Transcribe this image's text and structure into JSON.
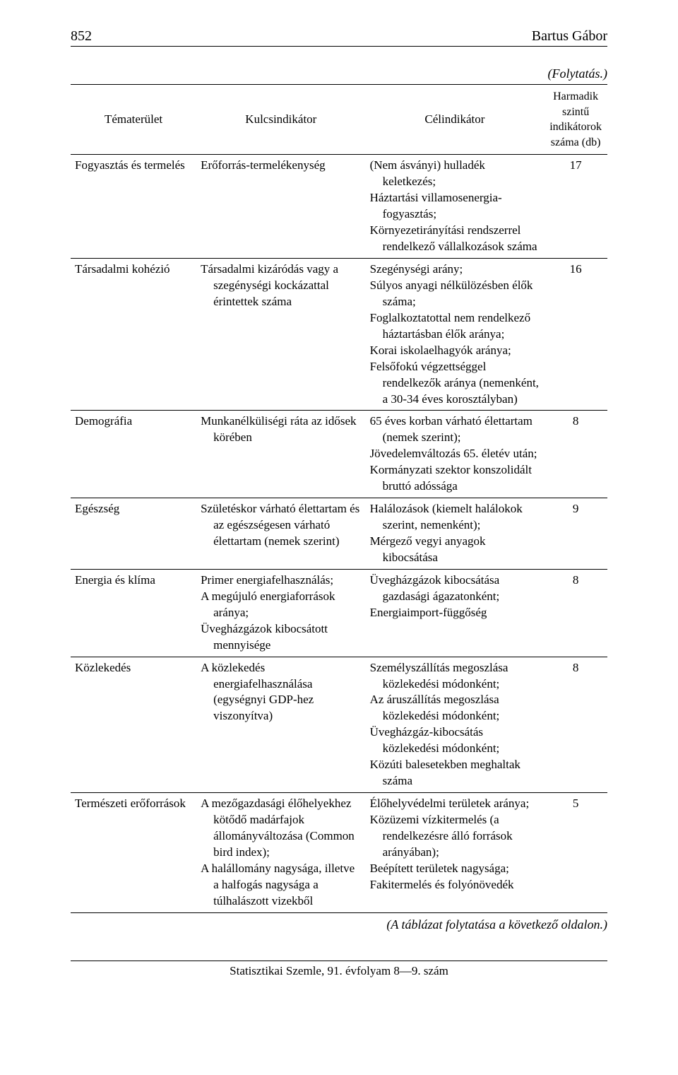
{
  "header": {
    "page_number": "852",
    "author": "Bartus Gábor"
  },
  "continuation": "(Folytatás.)",
  "table": {
    "headers": {
      "col1": "Tématerület",
      "col2": "Kulcsindikátor",
      "col3": "Célindikátor",
      "col4": "Harmadik szintű indikátorok száma (db)"
    },
    "rows": [
      {
        "topic": "Fogyasztás és termelés",
        "key": "Erőforrás-termelékenység",
        "targets": [
          "(Nem ásványi) hulladék keletkezés;",
          "Háztartási villamosenergia-fogyasztás;",
          "Környezetirányítási rendszerrel rendelkező vállalkozások száma"
        ],
        "count": "17"
      },
      {
        "topic": "Társadalmi kohézió",
        "key": "Társadalmi kizáródás vagy a szegénységi kockázattal érintettek száma",
        "targets": [
          "Szegénységi arány;",
          "Súlyos anyagi nélkülözésben élők száma;",
          "Foglalkoztatottal nem rendelkező háztartásban élők aránya;",
          "Korai iskolaelhagyók aránya;",
          "Felsőfokú végzettséggel rendelkezők aránya (nemenként, a 30-34 éves korosztályban)"
        ],
        "count": "16"
      },
      {
        "topic": "Demográfia",
        "key": "Munkanélküliségi ráta az idősek körében",
        "targets": [
          "65 éves korban várható élettartam (nemek szerint);",
          "Jövedelemváltozás 65. életév után;",
          "Kormányzati szektor konszolidált bruttó adóssága"
        ],
        "count": "8"
      },
      {
        "topic": "Egészség",
        "key": "Születéskor várható élettartam és az egészségesen várható élettartam (nemek szerint)",
        "targets": [
          "Halálozások (kiemelt halálokok szerint, nemenként);",
          "Mérgező vegyi anyagok kibocsátása"
        ],
        "count": "9"
      },
      {
        "topic": "Energia és klíma",
        "key_items": [
          "Primer energiafelhasználás;",
          "A megújuló energiaforrások aránya;",
          "Üvegházgázok kibocsátott mennyisége"
        ],
        "targets": [
          "Üvegházgázok kibocsátása gazdasági ágazatonként;",
          "Energiaimport-függőség"
        ],
        "count": "8"
      },
      {
        "topic": "Közlekedés",
        "key": "A közlekedés energiafelhasználása (egységnyi GDP-hez viszonyítva)",
        "targets": [
          "Személyszállítás megoszlása közlekedési módonként;",
          "Az áruszállítás megoszlása közlekedési módonként;",
          "Üvegházgáz-kibocsátás közlekedési módonként;",
          "Közúti balesetekben meghaltak száma"
        ],
        "count": "8"
      },
      {
        "topic": "Természeti erőforrások",
        "key_items": [
          "A mezőgazdasági élőhelyekhez kötődő madárfajok állományváltozása (Common bird index);",
          "A halállomány nagysága, illetve a halfogás nagysága a túlhalászott vizekből"
        ],
        "targets": [
          "Élőhelyvédelmi területek aránya;",
          "Közüzemi vízkitermelés (a rendelkezésre álló források arányában);",
          "Beépített területek nagysága;",
          "Fakitermelés és folyónövedék"
        ],
        "count": "5"
      }
    ]
  },
  "table_footnote": "(A táblázat folytatása a következő oldalon.)",
  "footer": "Statisztikai Szemle, 91. évfolyam 8—9. szám"
}
